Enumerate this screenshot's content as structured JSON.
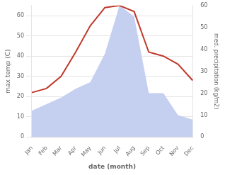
{
  "chart_data": {
    "type": "line",
    "categories": [
      "Jan",
      "Feb",
      "Mar",
      "Apr",
      "May",
      "Jun",
      "Jul",
      "Aug",
      "Sep",
      "Oct",
      "Nov",
      "Dec"
    ],
    "xlabel": "date (month)",
    "ylabel": "max temp (C)",
    "y2label": "med. precipitation (kg/m2)",
    "series": [
      {
        "type": "area",
        "color": "#c5cff0",
        "axis": "y2",
        "values": [
          12,
          15,
          18,
          22,
          25,
          38,
          60,
          55,
          20,
          20,
          10,
          8
        ]
      },
      {
        "type": "line",
        "color": "#c0392b",
        "values": [
          22,
          24,
          30,
          42,
          55,
          64,
          65,
          62,
          42,
          40,
          36,
          28
        ]
      }
    ],
    "ylim": [
      0,
      65
    ],
    "yticks": [
      0,
      10,
      20,
      30,
      40,
      50,
      60
    ],
    "y2lim": [
      0,
      60
    ],
    "y2ticks": [
      0,
      10,
      20,
      30,
      40,
      50,
      60
    ],
    "grid": true
  }
}
